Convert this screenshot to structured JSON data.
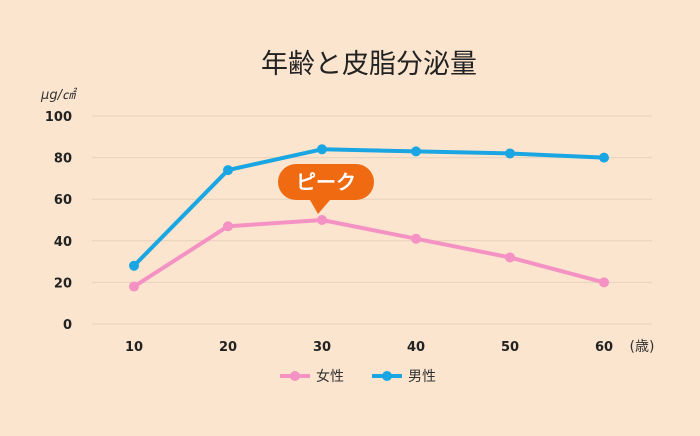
{
  "chart_data": {
    "type": "line",
    "title": "年齢と皮脂分泌量",
    "ylabel": "μg/㎠",
    "xunit": "(歳)",
    "categories": [
      "10",
      "20",
      "30",
      "40",
      "50",
      "60"
    ],
    "yticks": [
      "0",
      "20",
      "40",
      "60",
      "80",
      "100"
    ],
    "ylim": [
      0,
      100
    ],
    "grid": true,
    "legend_position": "bottom",
    "series": [
      {
        "name": "女性",
        "color": "#f592c4",
        "values": [
          18,
          47,
          50,
          41,
          32,
          20
        ]
      },
      {
        "name": "男性",
        "color": "#1aa6e2",
        "values": [
          28,
          74,
          84,
          83,
          82,
          80
        ]
      }
    ],
    "annotation": {
      "text": "ピーク",
      "category": "30",
      "color": "#f06a12"
    }
  }
}
